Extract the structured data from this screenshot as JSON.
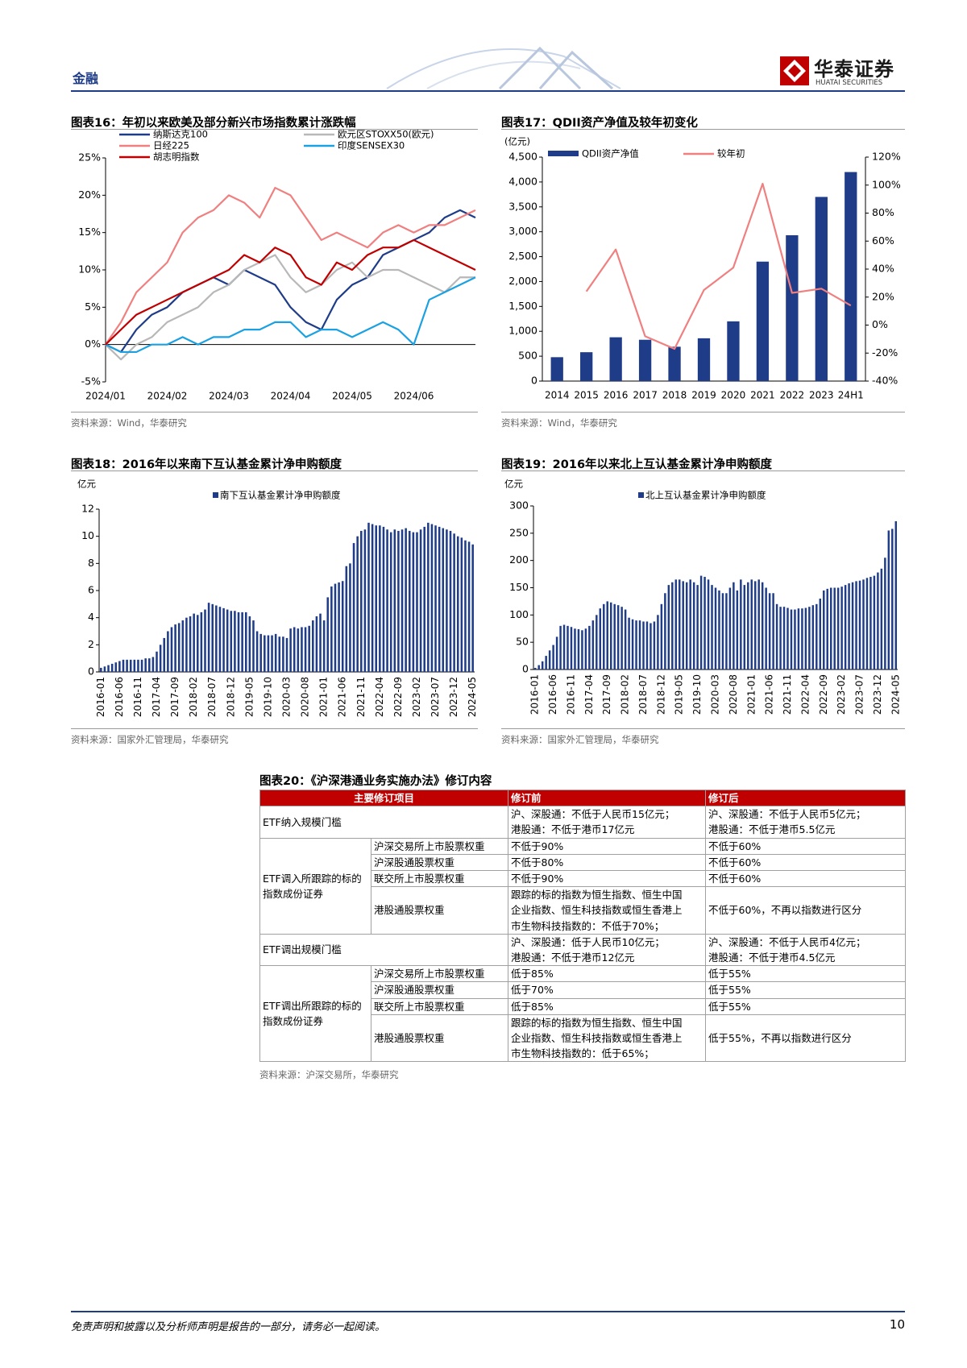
{
  "header": {
    "section": "金融",
    "brand": "华泰证券",
    "brand_en": "HUATAI SECURITIES"
  },
  "chart_data": [
    {
      "type": "line",
      "title": "图表16：年初以来欧美及部分新兴市场指数累计涨跌幅",
      "note": "资料来源：Wind，华泰研究",
      "categories": [
        "2024/01",
        null,
        null,
        null,
        "2024/02",
        null,
        null,
        null,
        "2024/03",
        null,
        null,
        null,
        "2024/04",
        null,
        null,
        null,
        "2024/05",
        null,
        null,
        null,
        "2024/06",
        null,
        null,
        null,
        null
      ],
      "series": [
        {
          "name": "纳斯达克100",
          "color": "#1f3c88",
          "values": [
            0,
            -1,
            2,
            4,
            5,
            7,
            8,
            9,
            8,
            10,
            9,
            8,
            5,
            3,
            2,
            6,
            8,
            9,
            12,
            13,
            14,
            15,
            17,
            18,
            17
          ]
        },
        {
          "name": "欧元区STOXX50(欧元)",
          "color": "#b8b8b8",
          "values": [
            0,
            -2,
            0,
            1,
            3,
            4,
            5,
            7,
            8,
            10,
            11,
            12,
            9,
            7,
            8,
            10,
            11,
            9,
            10,
            10,
            9,
            8,
            7,
            9,
            9
          ]
        },
        {
          "name": "日经225",
          "color": "#f08080",
          "values": [
            0,
            3,
            7,
            9,
            11,
            15,
            17,
            18,
            20,
            19,
            17,
            21,
            20,
            17,
            14,
            15,
            14,
            13,
            15,
            16,
            15,
            16,
            16,
            17,
            18
          ]
        },
        {
          "name": "印度SENSEX30",
          "color": "#1ba1e2",
          "values": [
            0,
            -1,
            -1,
            0,
            0,
            1,
            0,
            1,
            1,
            2,
            2,
            3,
            3,
            1,
            2,
            2,
            1,
            2,
            3,
            2,
            0,
            6,
            7,
            8,
            9
          ]
        },
        {
          "name": "胡志明指数",
          "color": "#c00000",
          "values": [
            0,
            2,
            4,
            5,
            6,
            7,
            8,
            9,
            10,
            12,
            11,
            13,
            12,
            9,
            8,
            11,
            10,
            12,
            13,
            13,
            14,
            13,
            12,
            11,
            10
          ]
        }
      ],
      "ylim": [
        -5,
        25
      ],
      "yticks": [
        {
          "value": -5,
          "label": "-5%"
        },
        {
          "value": 0,
          "label": "0%"
        },
        {
          "value": 5,
          "label": "5%"
        },
        {
          "value": 10,
          "label": "10%"
        },
        {
          "value": 15,
          "label": "15%"
        },
        {
          "value": 20,
          "label": "20%"
        },
        {
          "value": 25,
          "label": "25%"
        }
      ]
    },
    {
      "type": "bar",
      "title": "图表17：QDII资产净值及较年初变化",
      "note": "资料来源：Wind，华泰研究",
      "y_label": "(亿元)",
      "categories": [
        "2014",
        "2015",
        "2016",
        "2017",
        "2018",
        "2019",
        "2020",
        "2021",
        "2022",
        "2023",
        "24H1"
      ],
      "series": [
        {
          "name": "QDII资产净值",
          "color": "#1f3c88",
          "values": [
            480,
            580,
            880,
            830,
            690,
            860,
            1200,
            2400,
            2930,
            3700,
            4200
          ]
        },
        {
          "name": "较年初",
          "color": "#f08080",
          "type": "line",
          "axis": "y2",
          "values": [
            null,
            24,
            54,
            -8,
            -17,
            25,
            41,
            101,
            23,
            26,
            14
          ]
        }
      ],
      "ylim": [
        0,
        4500
      ],
      "yticks": [
        0,
        500,
        {
          "value": 1000,
          "label": "1,000"
        },
        {
          "value": 1500,
          "label": "1,500"
        },
        {
          "value": 2000,
          "label": "2,000"
        },
        {
          "value": 2500,
          "label": "2,500"
        },
        {
          "value": 3000,
          "label": "3,000"
        },
        {
          "value": 3500,
          "label": "3,500"
        },
        {
          "value": 4000,
          "label": "4,000"
        },
        {
          "value": 4500,
          "label": "4,500"
        }
      ],
      "y2lim": [
        -40,
        120
      ],
      "y2ticks": [
        {
          "value": -40,
          "label": "-40%"
        },
        {
          "value": -20,
          "label": "-20%"
        },
        {
          "value": 0,
          "label": "0%"
        },
        {
          "value": 20,
          "label": "20%"
        },
        {
          "value": 40,
          "label": "40%"
        },
        {
          "value": 60,
          "label": "60%"
        },
        {
          "value": 80,
          "label": "80%"
        },
        {
          "value": 100,
          "label": "100%"
        },
        {
          "value": 120,
          "label": "120%"
        }
      ]
    },
    {
      "type": "bar",
      "title": "图表18：2016年以来南下互认基金累计净申购额度",
      "note": "资料来源：国家外汇管理局，华泰研究",
      "y_label": "亿元",
      "categories": [
        "2016-01",
        null,
        null,
        null,
        null,
        "2016-06",
        null,
        null,
        null,
        null,
        "2016-11",
        null,
        null,
        null,
        null,
        "2017-04",
        null,
        null,
        null,
        null,
        "2017-09",
        null,
        null,
        null,
        null,
        "2018-02",
        null,
        null,
        null,
        null,
        "2018-07",
        null,
        null,
        null,
        null,
        "2018-12",
        null,
        null,
        null,
        null,
        "2019-05",
        null,
        null,
        null,
        null,
        "2019-10",
        null,
        null,
        null,
        null,
        "2020-03",
        null,
        null,
        null,
        null,
        "2020-08",
        null,
        null,
        null,
        null,
        "2021-01",
        null,
        null,
        null,
        null,
        "2021-06",
        null,
        null,
        null,
        null,
        "2021-11",
        null,
        null,
        null,
        null,
        "2022-04",
        null,
        null,
        null,
        null,
        "2022-09",
        null,
        null,
        null,
        null,
        "2023-02",
        null,
        null,
        null,
        null,
        "2023-07",
        null,
        null,
        null,
        null,
        "2023-12",
        null,
        null,
        null,
        null,
        "2024-05"
      ],
      "series": [
        {
          "name": "南下互认基金累计净申购额度",
          "color": "#1f3c88",
          "values": [
            0.3,
            0.4,
            0.5,
            0.6,
            0.7,
            0.8,
            0.9,
            0.9,
            0.9,
            0.9,
            0.9,
            0.9,
            1.0,
            1.0,
            1.1,
            1.5,
            2.0,
            2.5,
            3.0,
            3.3,
            3.5,
            3.6,
            3.8,
            4.0,
            4.1,
            4.3,
            4.2,
            4.4,
            4.6,
            5.1,
            5.0,
            4.9,
            4.8,
            4.7,
            4.6,
            4.5,
            4.5,
            4.4,
            4.4,
            4.4,
            4.1,
            3.8,
            3.0,
            2.8,
            2.7,
            2.7,
            2.7,
            2.8,
            2.6,
            2.6,
            2.5,
            3.2,
            3.3,
            3.2,
            3.3,
            3.3,
            3.4,
            3.8,
            4.1,
            4.3,
            3.8,
            5.5,
            6.3,
            6.5,
            6.6,
            6.7,
            7.8,
            8.0,
            9.5,
            10.0,
            10.4,
            10.5,
            11.0,
            10.9,
            10.8,
            10.8,
            10.7,
            10.5,
            10.3,
            10.5,
            10.4,
            10.5,
            10.6,
            10.4,
            10.3,
            10.3,
            10.5,
            10.7,
            11.0,
            10.9,
            10.8,
            10.7,
            10.6,
            10.5,
            10.4,
            10.2,
            10.0,
            9.9,
            9.7,
            9.6,
            9.4
          ]
        }
      ],
      "ylim": [
        0,
        12
      ],
      "yticks": [
        0,
        2,
        4,
        6,
        8,
        10,
        12
      ]
    },
    {
      "type": "bar",
      "title": "图表19：2016年以来北上互认基金累计净申购额度",
      "note": "资料来源：国家外汇管理局，华泰研究",
      "y_label": "亿元",
      "categories": [
        "2016-01",
        null,
        null,
        null,
        null,
        "2016-06",
        null,
        null,
        null,
        null,
        "2016-11",
        null,
        null,
        null,
        null,
        "2017-04",
        null,
        null,
        null,
        null,
        "2017-09",
        null,
        null,
        null,
        null,
        "2018-02",
        null,
        null,
        null,
        null,
        "2018-07",
        null,
        null,
        null,
        null,
        "2018-12",
        null,
        null,
        null,
        null,
        "2019-05",
        null,
        null,
        null,
        null,
        "2019-10",
        null,
        null,
        null,
        null,
        "2020-03",
        null,
        null,
        null,
        null,
        "2020-08",
        null,
        null,
        null,
        null,
        "2021-01",
        null,
        null,
        null,
        null,
        "2021-06",
        null,
        null,
        null,
        null,
        "2021-11",
        null,
        null,
        null,
        null,
        "2022-04",
        null,
        null,
        null,
        null,
        "2022-09",
        null,
        null,
        null,
        null,
        "2023-02",
        null,
        null,
        null,
        null,
        "2023-07",
        null,
        null,
        null,
        null,
        "2023-12",
        null,
        null,
        null,
        null,
        "2024-05"
      ],
      "series": [
        {
          "name": "北上互认基金累计净申购额度",
          "color": "#1f3c88",
          "values": [
            3,
            8,
            15,
            25,
            35,
            45,
            60,
            80,
            82,
            80,
            78,
            75,
            74,
            72,
            75,
            80,
            90,
            100,
            112,
            120,
            125,
            123,
            120,
            118,
            115,
            110,
            95,
            92,
            90,
            90,
            88,
            88,
            85,
            88,
            100,
            120,
            140,
            155,
            160,
            165,
            165,
            162,
            160,
            165,
            160,
            155,
            172,
            170,
            165,
            155,
            150,
            145,
            140,
            140,
            150,
            160,
            145,
            165,
            155,
            160,
            165,
            162,
            165,
            160,
            150,
            140,
            140,
            120,
            115,
            115,
            113,
            110,
            110,
            112,
            112,
            113,
            115,
            118,
            120,
            130,
            145,
            148,
            150,
            150,
            150,
            152,
            155,
            158,
            160,
            162,
            163,
            165,
            168,
            170,
            172,
            178,
            185,
            205,
            255,
            258,
            272
          ]
        }
      ],
      "ylim": [
        0,
        300
      ],
      "yticks": [
        0,
        50,
        100,
        150,
        200,
        250,
        300
      ]
    }
  ],
  "table": {
    "title": "图表20：《沪深港通业务实施办法》修订内容",
    "note": "资料来源：沪深交易所，华泰研究",
    "header": [
      "主要修订项目",
      "修订前",
      "修订后"
    ],
    "groups": [
      {
        "item": "ETF纳入规模门槛",
        "before": [
          "沪、深股通：不低于人民币15亿元；",
          "港股通：不低于港币17亿元"
        ],
        "after": [
          "沪、深股通：不低于人民币5亿元；",
          "港股通：不低于港币5.5亿元"
        ]
      },
      {
        "item": "ETF调入所跟踪的标的指数成份证券",
        "subrows": [
          {
            "sub": "沪深交易所上市股票权重",
            "before": [
              "不低于90%"
            ],
            "after": [
              "不低于60%"
            ]
          },
          {
            "sub": "沪深股通股票权重",
            "before": [
              "不低于80%"
            ],
            "after": [
              "不低于60%"
            ]
          },
          {
            "sub": "联交所上市股票权重",
            "before": [
              "不低于90%"
            ],
            "after": [
              "不低于60%"
            ]
          },
          {
            "sub": "港股通股票权重",
            "before": [
              "跟踪的标的指数为恒生指数、恒生中国",
              "企业指数、恒生科技指数或恒生香港上",
              "市生物科技指数的：不低于70%；"
            ],
            "after": [
              "不低于60%，不再以指数进行区分"
            ]
          }
        ]
      },
      {
        "item": "ETF调出规模门槛",
        "before": [
          "沪、深股通：低于人民币10亿元；",
          "港股通：不低于港币12亿元"
        ],
        "after": [
          "沪、深股通：不低于人民币4亿元；",
          "港股通：不低于港币4.5亿元"
        ]
      },
      {
        "item": "ETF调出所跟踪的标的指数成份证券",
        "subrows": [
          {
            "sub": "沪深交易所上市股票权重",
            "before": [
              "低于85%"
            ],
            "after": [
              "低于55%"
            ]
          },
          {
            "sub": "沪深股通股票权重",
            "before": [
              "低于70%"
            ],
            "after": [
              "低于55%"
            ]
          },
          {
            "sub": "联交所上市股票权重",
            "before": [
              "低于85%"
            ],
            "after": [
              "低于55%"
            ]
          },
          {
            "sub": "港股通股票权重",
            "before": [
              "跟踪的标的指数为恒生指数、恒生中国",
              "企业指数、恒生科技指数或恒生香港上",
              "市生物科技指数的：低于65%；"
            ],
            "after": [
              "低于55%，不再以指数进行区分"
            ]
          }
        ]
      }
    ]
  },
  "footer": {
    "disclaimer": "免责声明和披露以及分析师声明是报告的一部分，请务必一起阅读。",
    "page": 10
  }
}
